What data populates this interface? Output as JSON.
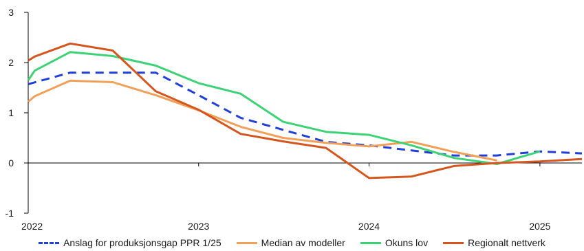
{
  "chart_data": {
    "type": "line",
    "title": "",
    "xlabel": "",
    "ylabel": "",
    "ylim": [
      -1,
      3
    ],
    "xlim": [
      "2022-01-01",
      "2025-04-01"
    ],
    "yticks": [
      "3",
      "2",
      "1",
      "0",
      "-1"
    ],
    "xticks": [
      "2022",
      "2023",
      "2024",
      "2025"
    ],
    "grid": false,
    "legend_position": "bottom",
    "series": [
      {
        "name": "Anslag for produksjonsgap PPR 1/25",
        "color": "#1f3fd6",
        "style": "dashed",
        "points": [
          [
            "2022-01-01",
            1.57
          ],
          [
            "2022-04-01",
            1.8
          ],
          [
            "2022-07-01",
            1.8
          ],
          [
            "2022-10-01",
            1.8
          ],
          [
            "2023-01-01",
            1.35
          ],
          [
            "2023-04-01",
            0.9
          ],
          [
            "2023-07-01",
            0.66
          ],
          [
            "2023-10-01",
            0.42
          ],
          [
            "2024-01-01",
            0.35
          ],
          [
            "2024-04-01",
            0.25
          ],
          [
            "2024-07-01",
            0.15
          ],
          [
            "2024-10-01",
            0.15
          ],
          [
            "2025-01-01",
            0.23
          ],
          [
            "2025-04-01",
            0.19
          ]
        ]
      },
      {
        "name": "Median av modeller",
        "color": "#f0a058",
        "style": "solid",
        "points": [
          [
            "2022-01-01",
            1.22
          ],
          [
            "2022-01-15",
            1.33
          ],
          [
            "2022-04-01",
            1.64
          ],
          [
            "2022-07-01",
            1.61
          ],
          [
            "2022-10-01",
            1.35
          ],
          [
            "2023-01-01",
            1.05
          ],
          [
            "2023-04-01",
            0.72
          ],
          [
            "2023-07-01",
            0.5
          ],
          [
            "2023-10-01",
            0.4
          ],
          [
            "2024-01-01",
            0.33
          ],
          [
            "2024-04-01",
            0.42
          ],
          [
            "2024-07-01",
            0.22
          ],
          [
            "2024-10-01",
            0.05
          ]
        ]
      },
      {
        "name": "Okuns lov",
        "color": "#3ed276",
        "style": "solid",
        "points": [
          [
            "2022-01-01",
            1.65
          ],
          [
            "2022-01-15",
            1.84
          ],
          [
            "2022-04-01",
            2.21
          ],
          [
            "2022-07-01",
            2.13
          ],
          [
            "2022-10-01",
            1.94
          ],
          [
            "2023-01-01",
            1.59
          ],
          [
            "2023-04-01",
            1.38
          ],
          [
            "2023-07-01",
            0.82
          ],
          [
            "2023-10-01",
            0.62
          ],
          [
            "2024-01-01",
            0.56
          ],
          [
            "2024-04-01",
            0.35
          ],
          [
            "2024-07-01",
            0.1
          ],
          [
            "2024-10-01",
            -0.02
          ],
          [
            "2025-01-01",
            0.23
          ]
        ]
      },
      {
        "name": "Regionalt nettverk",
        "color": "#d4561e",
        "style": "solid",
        "points": [
          [
            "2022-01-01",
            2.04
          ],
          [
            "2022-01-15",
            2.12
          ],
          [
            "2022-04-01",
            2.38
          ],
          [
            "2022-07-01",
            2.24
          ],
          [
            "2022-10-01",
            1.43
          ],
          [
            "2023-01-01",
            1.06
          ],
          [
            "2023-04-01",
            0.58
          ],
          [
            "2023-07-01",
            0.43
          ],
          [
            "2023-10-01",
            0.3
          ],
          [
            "2024-01-01",
            -0.3
          ],
          [
            "2024-04-01",
            -0.27
          ],
          [
            "2024-07-01",
            -0.06
          ],
          [
            "2024-10-01",
            0.0
          ],
          [
            "2025-01-01",
            0.03
          ],
          [
            "2025-04-01",
            0.08
          ]
        ]
      }
    ]
  }
}
